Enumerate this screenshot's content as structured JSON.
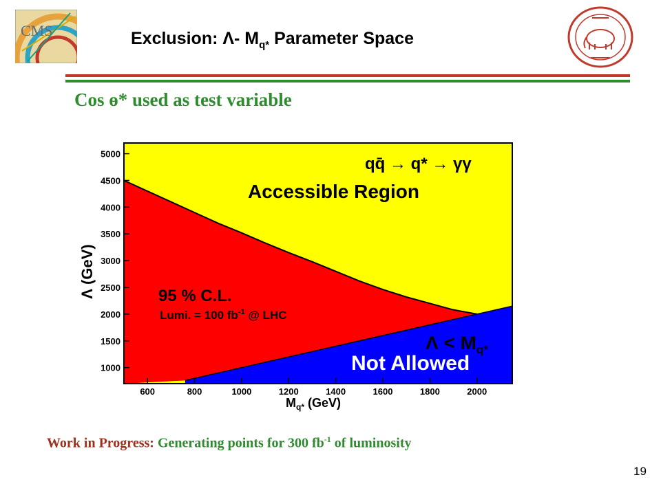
{
  "slide": {
    "title_main": "Exclusion: Λ- M",
    "title_sub": "q*",
    "title_tail": " Parameter Space",
    "subtitle": "Cos ɵ* used as test variable",
    "footer_wip": "Work in Progress:",
    "footer_rest": " Generating points for 300 fb",
    "footer_sup": "-1",
    "footer_tail": " of luminosity",
    "page_number": "19",
    "logo_left_text": "CMS"
  },
  "colors": {
    "accessible": "#ffff00",
    "excluded": "#ff0000",
    "not_allowed": "#0000ff",
    "rule_red": "#c0392b",
    "rule_green": "#2e8b2e"
  },
  "chart_data": {
    "type": "area",
    "xlabel": "M",
    "xlabel_sub": "q*",
    "xlabel_tail": " (GeV)",
    "ylabel": "Λ (GeV)",
    "xlim": [
      500,
      2150
    ],
    "ylim": [
      700,
      5200
    ],
    "x_ticks": [
      600,
      800,
      1000,
      1200,
      1400,
      1600,
      1800,
      2000
    ],
    "y_ticks": [
      1000,
      1500,
      2000,
      2500,
      3000,
      3500,
      4000,
      4500,
      5000
    ],
    "exclusion_curve": {
      "x": [
        500,
        600,
        700,
        800,
        900,
        1000,
        1100,
        1200,
        1300,
        1400,
        1500,
        1600,
        1700,
        1800,
        1900,
        2000
      ],
      "y": [
        4500,
        4300,
        4100,
        3900,
        3700,
        3520,
        3330,
        3150,
        2980,
        2800,
        2620,
        2460,
        2320,
        2200,
        2080,
        2000
      ]
    },
    "not_allowed_line": {
      "x": [
        760,
        2150
      ],
      "y": [
        760,
        2150
      ]
    },
    "annotations": {
      "process": "qq̄ → q* → γγ",
      "accessible": "Accessible Region",
      "cl": "95 % C.L.",
      "lumi_main": "Lumi. = 100 fb",
      "lumi_sup": "-1",
      "lumi_tail": " @ LHC",
      "lambda_lt": "Λ < M",
      "lambda_sub": "q*",
      "not_allowed": "Not Allowed"
    }
  }
}
